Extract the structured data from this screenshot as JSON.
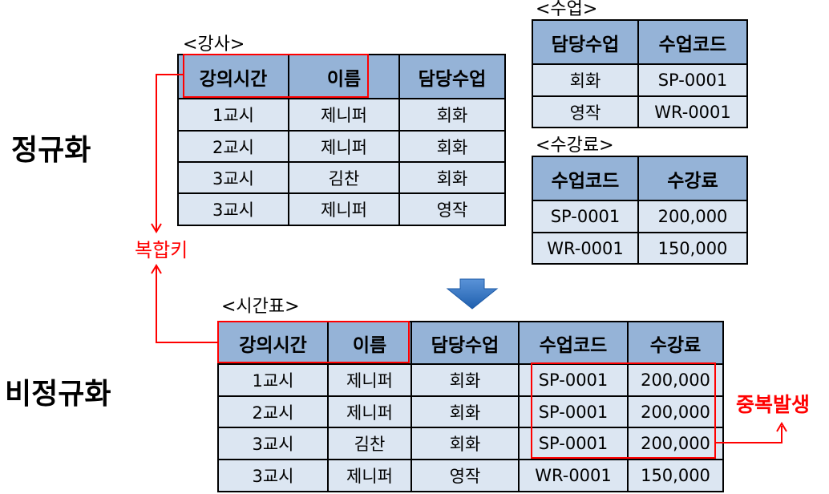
{
  "labels": {
    "normalized": "정규화",
    "denormalized": "비정규화",
    "composite_key": "복합키",
    "duplication": "중복발생"
  },
  "lecturer_table": {
    "caption": "<강사>",
    "headers": [
      "강의시간",
      "이름",
      "담당수업"
    ],
    "rows": [
      [
        "1교시",
        "제니퍼",
        "회화"
      ],
      [
        "2교시",
        "제니퍼",
        "회화"
      ],
      [
        "3교시",
        "김찬",
        "회화"
      ],
      [
        "3교시",
        "제니퍼",
        "영작"
      ]
    ]
  },
  "class_table": {
    "caption": "<수업>",
    "headers": [
      "담당수업",
      "수업코드"
    ],
    "rows": [
      [
        "회화",
        "SP-0001"
      ],
      [
        "영작",
        "WR-0001"
      ]
    ]
  },
  "fee_table": {
    "caption": "<수강료>",
    "headers": [
      "수업코드",
      "수강료"
    ],
    "rows": [
      [
        "SP-0001",
        "200,000"
      ],
      [
        "WR-0001",
        "150,000"
      ]
    ]
  },
  "timetable": {
    "caption": "<시간표>",
    "headers": [
      "강의시간",
      "이름",
      "담당수업",
      "수업코드",
      "수강료"
    ],
    "rows": [
      [
        "1교시",
        "제니퍼",
        "회화",
        "SP-0001",
        "200,000"
      ],
      [
        "2교시",
        "제니퍼",
        "회화",
        "SP-0001",
        "200,000"
      ],
      [
        "3교시",
        "김찬",
        "회화",
        "SP-0001",
        "200,000"
      ],
      [
        "3교시",
        "제니퍼",
        "영작",
        "WR-0001",
        "150,000"
      ]
    ]
  },
  "colors": {
    "header_fill": "#95b3d7",
    "cell_fill": "#dce6f2",
    "highlight": "#ff0000",
    "arrow": "#2e6bbf"
  }
}
